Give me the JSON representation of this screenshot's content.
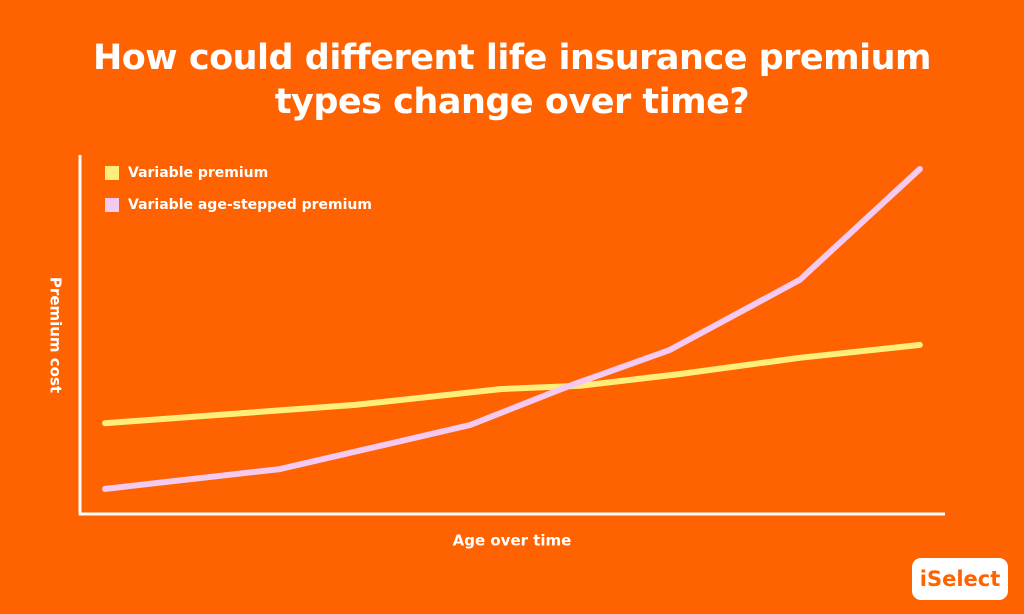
{
  "chart_data": {
    "type": "line",
    "title": "How could different life insurance premium types change over time?",
    "x_label": "Age over time",
    "y_label": "Premium cost",
    "xlim": [
      0,
      100
    ],
    "ylim": [
      0,
      100
    ],
    "legend": "top-left",
    "series": [
      {
        "name": "Variable premium",
        "color": "#ffee7a",
        "x": [
          2.9,
          31.8,
          48.6,
          57.8,
          69.4,
          83.2,
          97.1
        ],
        "values": [
          25.3,
          30.4,
          34.8,
          35.7,
          39.0,
          43.5,
          47.1
        ]
      },
      {
        "name": "Variable age-stepped premium",
        "color": "#f5c9f0",
        "x": [
          2.9,
          23.1,
          45.1,
          56.6,
          68.2,
          83.2,
          97.1
        ],
        "values": [
          7.0,
          12.5,
          24.8,
          35.7,
          45.7,
          65.2,
          96.1
        ]
      }
    ]
  },
  "logo": "iSelect"
}
